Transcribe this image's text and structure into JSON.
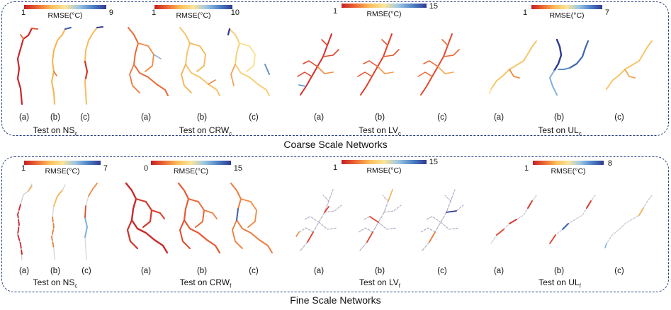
{
  "sections": [
    {
      "key": "coarse",
      "title": "Coarse Scale Networks",
      "panels": [
        {
          "colorbar": {
            "label": "RMSE(°C)",
            "min": "1",
            "max": "9"
          },
          "sublabels": [
            "(a)",
            "(b)",
            "(c)"
          ],
          "test_prefix": "Test on NS",
          "test_sub": "c"
        },
        {
          "colorbar": {
            "label": "RMSE(°C)",
            "min": "1",
            "max": "10"
          },
          "sublabels": [
            "(a)",
            "(b)",
            "(c)"
          ],
          "test_prefix": "Test on CRW",
          "test_sub": "c"
        },
        {
          "colorbar": {
            "label": "RMSE(°C)",
            "min": "1",
            "max": "15"
          },
          "sublabels": [
            "(a)",
            "(b)",
            "(c)"
          ],
          "test_prefix": "Test on LV",
          "test_sub": "c"
        },
        {
          "colorbar": {
            "label": "RMSE(°C)",
            "min": "1",
            "max": "7"
          },
          "sublabels": [
            "(a)",
            "(b)",
            "(c)"
          ],
          "test_prefix": "Test on UL",
          "test_sub": "c"
        }
      ]
    },
    {
      "key": "fine",
      "title": "Fine Scale Networks",
      "panels": [
        {
          "colorbar": {
            "label": "RMSE(°C)",
            "min": "1",
            "max": "7"
          },
          "sublabels": [
            "(a)",
            "(b)",
            "(c)"
          ],
          "test_prefix": "Test on NS",
          "test_sub": "c"
        },
        {
          "colorbar": {
            "label": "RMSE(°C)",
            "min": "0",
            "max": "15"
          },
          "sublabels": [
            "(a)",
            "(b)",
            "(c)"
          ],
          "test_prefix": "Test on CRW",
          "test_sub": "f"
        },
        {
          "colorbar": {
            "label": "RMSE(°C)",
            "min": "1",
            "max": "15"
          },
          "sublabels": [
            "(a)",
            "(b)",
            "(c)"
          ],
          "test_prefix": "Test on LV",
          "test_sub": "f"
        },
        {
          "colorbar": {
            "label": "RMSE(°C)",
            "min": "1",
            "max": "8"
          },
          "sublabels": [
            "(a)",
            "(b)",
            "(c)"
          ],
          "test_prefix": "Test on UL",
          "test_sub": "f"
        }
      ]
    }
  ],
  "colors": {
    "frame": "#2b3f7e",
    "colormap": [
      "#c41f25",
      "#ee6a35",
      "#fbbf5a",
      "#fbe59a",
      "#9ec7e3",
      "#4f83c6",
      "#2f3a93"
    ]
  }
}
